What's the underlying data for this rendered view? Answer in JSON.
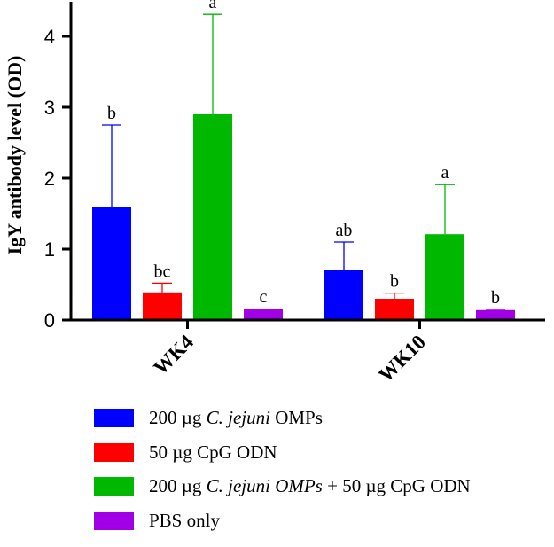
{
  "chart_data": {
    "type": "bar",
    "title": "",
    "xlabel": "",
    "ylabel": "IgY antibody level (OD)",
    "ylim": [
      0,
      4.5
    ],
    "yticks": [
      0,
      1,
      2,
      3,
      4
    ],
    "categories": [
      "WK4",
      "WK10"
    ],
    "series": [
      {
        "name": "200 µg C. jejuni OMPs",
        "color": "#0000ff",
        "values": [
          1.6,
          0.7
        ],
        "errors": [
          1.15,
          0.4
        ],
        "labels": [
          "b",
          "ab"
        ]
      },
      {
        "name": "50 µg CpG ODN",
        "color": "#ff0000",
        "values": [
          0.39,
          0.3
        ],
        "errors": [
          0.13,
          0.08
        ],
        "labels": [
          "bc",
          "b"
        ]
      },
      {
        "name": "200 µg C. jejuni OMPs + 50 µg CpG ODN",
        "color": "#00b800",
        "values": [
          2.9,
          1.21
        ],
        "errors": [
          1.41,
          0.7
        ],
        "labels": [
          "a",
          "a"
        ]
      },
      {
        "name": "PBS only",
        "color": "#a100e6",
        "values": [
          0.16,
          0.14
        ],
        "errors": [
          0.0,
          0.01
        ],
        "labels": [
          "c",
          "b"
        ]
      }
    ]
  },
  "legend": [
    {
      "pre": "200 µg ",
      "it": "C. jejuni",
      "post": " OMPs"
    },
    {
      "pre": "50 µg CpG ODN",
      "it": "",
      "post": ""
    },
    {
      "pre": "200 µg ",
      "it": "C. jejuni OMPs",
      "post": " + 50 µg CpG ODN"
    },
    {
      "pre": "PBS only",
      "it": "",
      "post": ""
    }
  ]
}
